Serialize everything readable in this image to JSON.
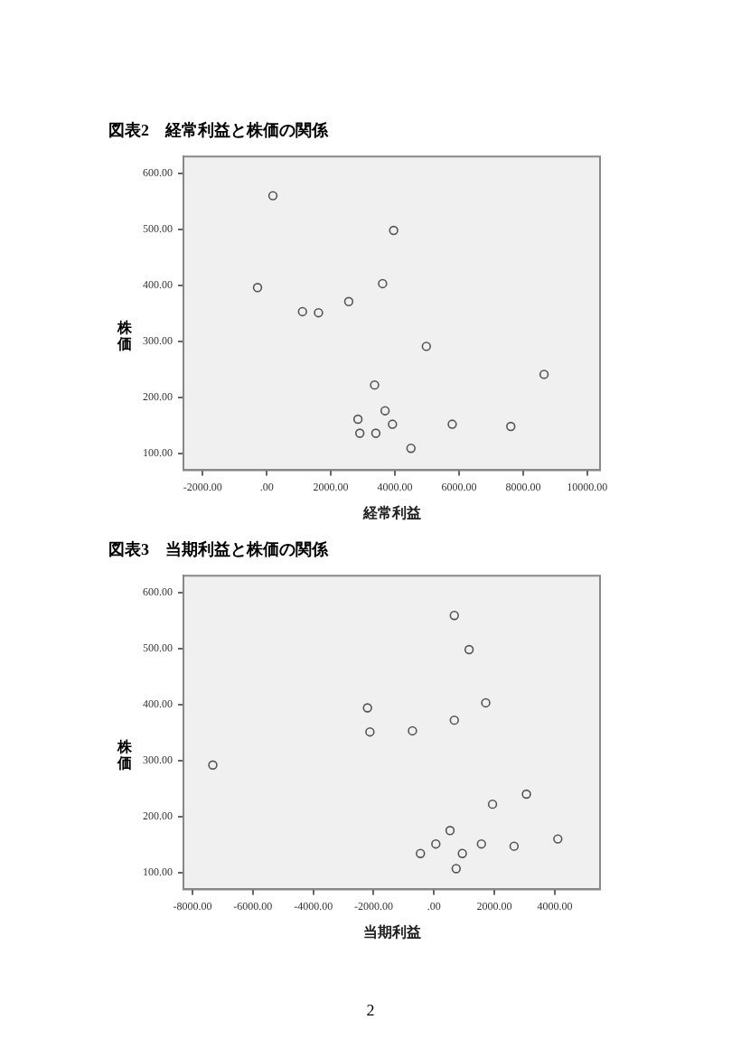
{
  "chart_data": [
    {
      "type": "scatter",
      "title": "図表2　経常利益と株価の関係",
      "xlabel": "経常利益",
      "ylabel": "株価",
      "color": "#555555",
      "marker": "circle",
      "grid": false,
      "legend": false,
      "x": [
        192,
        3960,
        -288,
        3615,
        1115,
        1615,
        2558,
        4980,
        8654,
        3365,
        2846,
        3692,
        2904,
        3404,
        3923,
        5788,
        7615,
        4500
      ],
      "values": [
        560,
        498,
        396,
        403,
        353,
        351,
        371,
        291,
        241,
        222,
        161,
        176,
        136,
        136,
        152,
        152,
        148,
        109
      ],
      "xlim": [
        -2600,
        10400
      ],
      "ylim": [
        70,
        630
      ],
      "xticks": [
        {
          "value": -2000,
          "label": "-2000.00"
        },
        {
          "value": 0,
          "label": ".00"
        },
        {
          "value": 2000,
          "label": "2000.00"
        },
        {
          "value": 4000,
          "label": "4000.00"
        },
        {
          "value": 6000,
          "label": "6000.00"
        },
        {
          "value": 8000,
          "label": "8000.00"
        },
        {
          "value": 10000,
          "label": "10000.00"
        }
      ],
      "yticks": [
        {
          "value": 100,
          "label": "100.00"
        },
        {
          "value": 200,
          "label": "200.00"
        },
        {
          "value": 300,
          "label": "300.00"
        },
        {
          "value": 400,
          "label": "400.00"
        },
        {
          "value": 500,
          "label": "500.00"
        },
        {
          "value": 600,
          "label": "600.00"
        }
      ]
    },
    {
      "type": "scatter",
      "title": "図表3　当期利益と株価の関係",
      "xlabel": "当期利益",
      "ylabel": "株価",
      "color": "#555555",
      "marker": "circle",
      "grid": false,
      "legend": false,
      "x": [
        673,
        1163,
        1714,
        673,
        -2204,
        -2122,
        -714,
        -7327,
        3061,
        1939,
        531,
        61,
        -449,
        939,
        1571,
        2653,
        4102,
        735
      ],
      "values": [
        559,
        498,
        403,
        372,
        394,
        351,
        353,
        292,
        240,
        222,
        175,
        151,
        134,
        134,
        151,
        147,
        160,
        107
      ],
      "xlim": [
        -8300,
        5500
      ],
      "ylim": [
        70,
        630
      ],
      "xticks": [
        {
          "value": -8000,
          "label": "-8000.00"
        },
        {
          "value": -6000,
          "label": "-6000.00"
        },
        {
          "value": -4000,
          "label": "-4000.00"
        },
        {
          "value": -2000,
          "label": "-2000.00"
        },
        {
          "value": 0,
          "label": ".00"
        },
        {
          "value": 2000,
          "label": "2000.00"
        },
        {
          "value": 4000,
          "label": "4000.00"
        }
      ],
      "yticks": [
        {
          "value": 100,
          "label": "100.00"
        },
        {
          "value": 200,
          "label": "200.00"
        },
        {
          "value": 300,
          "label": "300.00"
        },
        {
          "value": 400,
          "label": "400.00"
        },
        {
          "value": 500,
          "label": "500.00"
        },
        {
          "value": 600,
          "label": "600.00"
        }
      ],
      "annotations": [
        "2"
      ]
    }
  ]
}
